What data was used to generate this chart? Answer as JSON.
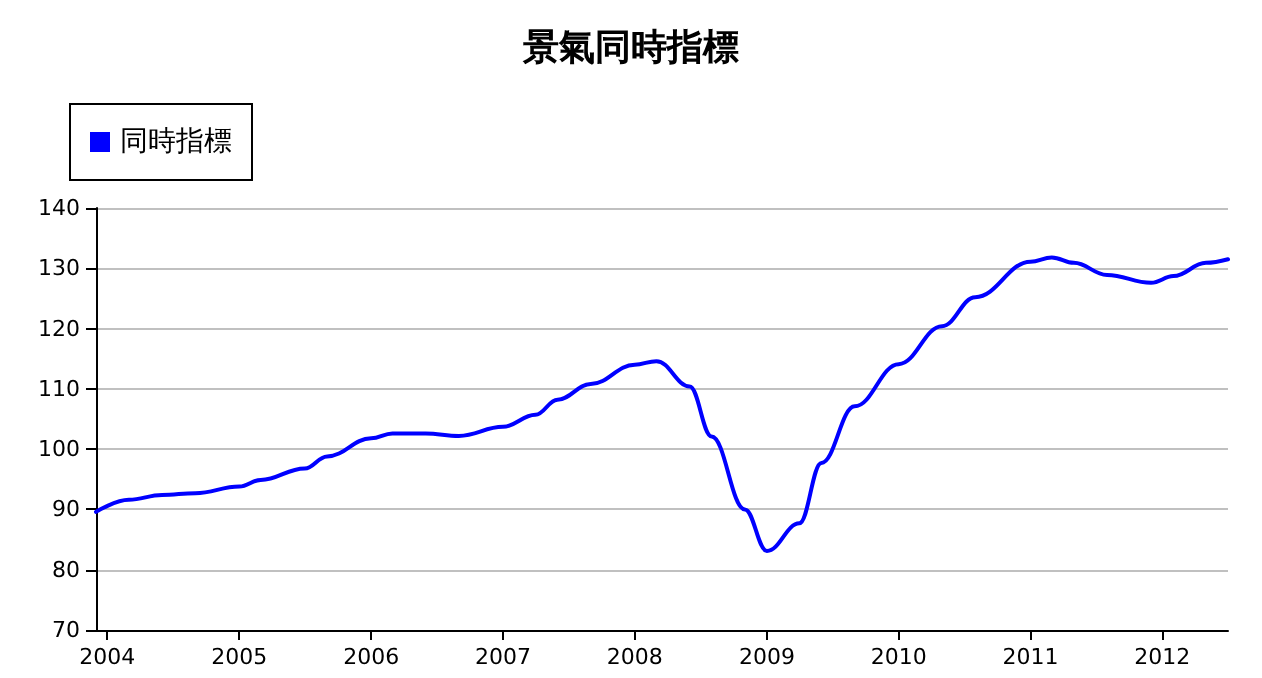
{
  "chart_data": {
    "type": "line",
    "title": "景氣同時指標",
    "x": [
      "2003-12",
      "2004-03",
      "2004-06",
      "2004-09",
      "2005-01",
      "2005-03",
      "2005-07",
      "2005-09",
      "2006-01",
      "2006-03",
      "2006-06",
      "2006-09",
      "2007-01",
      "2007-04",
      "2007-06",
      "2007-09",
      "2008-01",
      "2008-03",
      "2008-06",
      "2008-08",
      "2008-11",
      "2009-01",
      "2009-04",
      "2009-06",
      "2009-09",
      "2010-01",
      "2010-05",
      "2010-08",
      "2011-01",
      "2011-03",
      "2011-05",
      "2011-08",
      "2011-12",
      "2012-02",
      "2012-05",
      "2012-07"
    ],
    "series": [
      {
        "name": "同時指標",
        "color": "#0000ff",
        "values": [
          89.6,
          91.6,
          92.4,
          92.7,
          93.8,
          94.9,
          96.8,
          98.8,
          101.8,
          102.6,
          102.6,
          102.2,
          103.7,
          105.7,
          108.2,
          110.8,
          114.0,
          114.6,
          110.4,
          102.1,
          90.0,
          83.1,
          87.7,
          97.7,
          107.1,
          114.1,
          120.4,
          125.2,
          131.1,
          131.8,
          130.9,
          128.9,
          127.6,
          128.7,
          130.9,
          131.5
        ]
      }
    ],
    "xlim": [
      "2003-12",
      "2012-07"
    ],
    "xticks": [
      {
        "value": "2004",
        "label": "2004"
      },
      {
        "value": "2005",
        "label": "2005"
      },
      {
        "value": "2006",
        "label": "2006"
      },
      {
        "value": "2007",
        "label": "2007"
      },
      {
        "value": "2008",
        "label": "2008"
      },
      {
        "value": "2009",
        "label": "2009"
      },
      {
        "value": "2010",
        "label": "2010"
      },
      {
        "value": "2011",
        "label": "2011"
      },
      {
        "value": "2012",
        "label": "2012"
      }
    ],
    "ylim": [
      70,
      140
    ],
    "yticks": [
      70,
      80,
      90,
      100,
      110,
      120,
      130,
      140
    ],
    "grid": "y",
    "legend": "top left",
    "marker": "none",
    "line_style": "solid"
  }
}
